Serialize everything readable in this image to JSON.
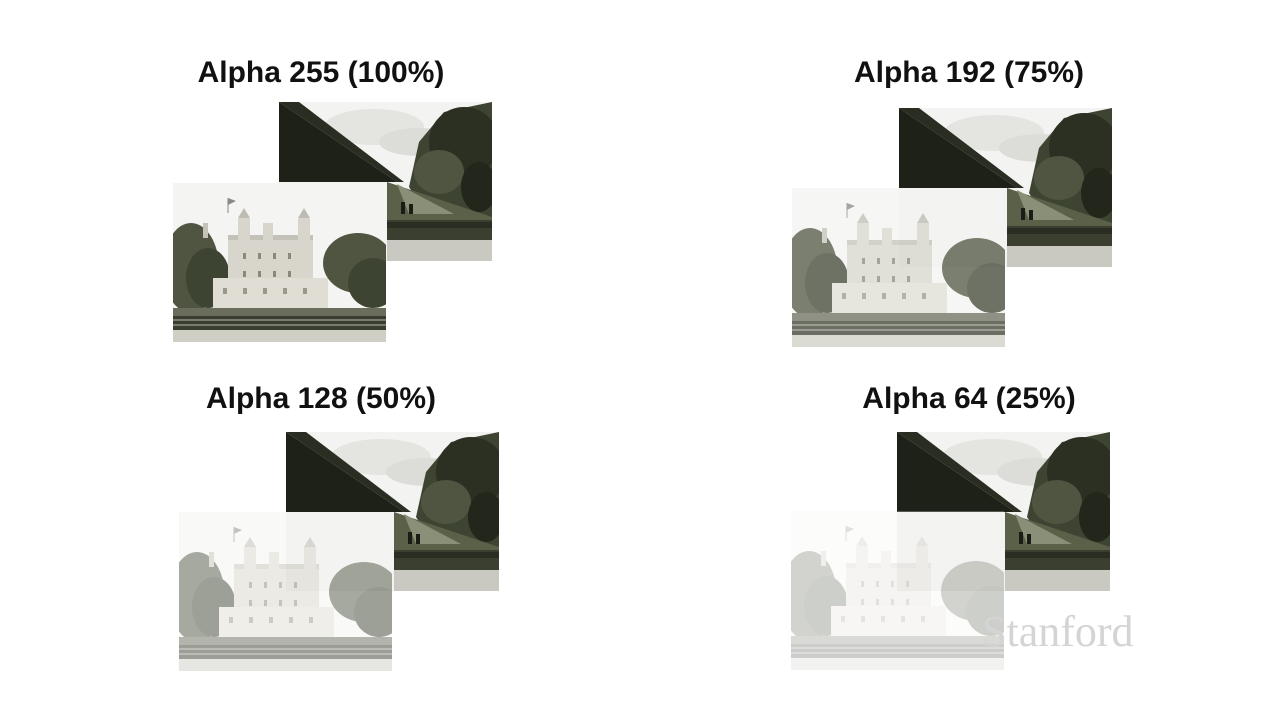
{
  "panels": [
    {
      "title": "Alpha 255 (100%)",
      "alpha": 1.0
    },
    {
      "title": "Alpha 192 (75%)",
      "alpha": 0.75
    },
    {
      "title": "Alpha 128 (50%)",
      "alpha": 0.5
    },
    {
      "title": "Alpha 64 (25%)",
      "alpha": 0.25
    }
  ],
  "watermark": "Stanford",
  "colors": {
    "background": "#ffffff",
    "text": "#111111",
    "foliage": "#4f5541",
    "dark": "#1e2118",
    "stone": "#d8d6cc",
    "sky": "#f4f4f2"
  }
}
